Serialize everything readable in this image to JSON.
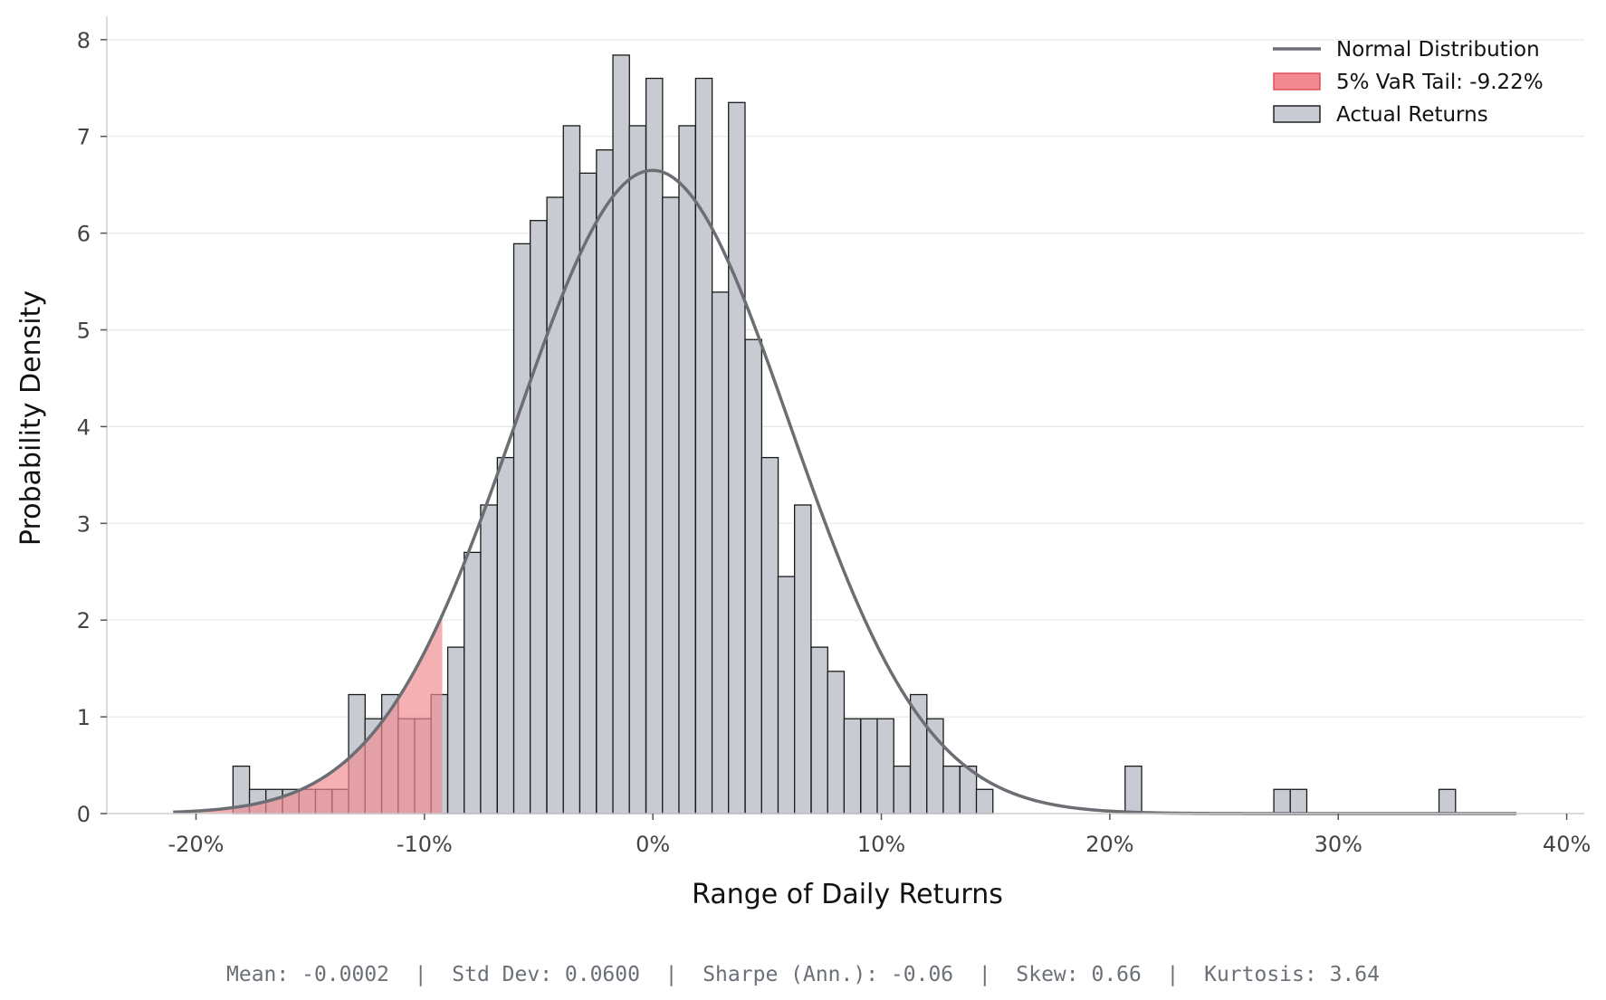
{
  "chart_data": {
    "type": "bar",
    "xlabel": "Range of Daily Returns",
    "ylabel": "Probability Density",
    "xlim": [
      -0.23,
      0.4
    ],
    "ylim": [
      0,
      8.25
    ],
    "x_ticks": [
      -0.2,
      -0.1,
      0.0,
      0.1,
      0.2,
      0.3,
      0.4
    ],
    "x_tick_labels": [
      "-20%",
      "-10%",
      "0%",
      "10%",
      "20%",
      "30%",
      "40%"
    ],
    "y_ticks": [
      0,
      1,
      2,
      3,
      4,
      5,
      6,
      7,
      8
    ],
    "y_tick_labels": [
      "0",
      "1",
      "2",
      "3",
      "4",
      "5",
      "6",
      "7",
      "8"
    ],
    "grid": "horizontal",
    "legend_position": "top-right",
    "legend": [
      {
        "label": "Normal Distribution",
        "kind": "line",
        "color": "#6b6e73"
      },
      {
        "label": "5% VaR Tail: -9.22%",
        "kind": "patch",
        "color": "#f08a90",
        "edge": "#e0505a"
      },
      {
        "label": "Actual Returns",
        "kind": "patch",
        "color": "#c8ccd2",
        "edge": "#222222"
      }
    ],
    "histogram": {
      "name": "Actual Returns",
      "bin_width": 0.00723,
      "bins_start": [
        -0.1838,
        -0.1766,
        -0.1694,
        -0.1621,
        -0.1549,
        -0.1477,
        -0.1404,
        -0.1332,
        -0.126,
        -0.1187,
        -0.1115,
        -0.1043,
        -0.0971,
        -0.0898,
        -0.0826,
        -0.0754,
        -0.0681,
        -0.0609,
        -0.0537,
        -0.0464,
        -0.0392,
        -0.032,
        -0.0247,
        -0.0175,
        -0.0103,
        -0.003,
        0.0042,
        0.0114,
        0.0187,
        0.0259,
        0.0331,
        0.0404,
        0.0476,
        0.0548,
        0.062,
        0.0693,
        0.0765,
        0.0837,
        0.091,
        0.0982,
        0.1054,
        0.1127,
        0.1199,
        0.1271,
        0.1344,
        0.1416,
        0.2067,
        0.2718,
        0.279,
        0.3441
      ],
      "values": [
        0.49,
        0.25,
        0.25,
        0.25,
        0.25,
        0.25,
        0.25,
        1.23,
        0.98,
        1.23,
        0.98,
        0.98,
        1.23,
        1.72,
        2.7,
        3.19,
        3.68,
        5.89,
        6.13,
        6.37,
        7.11,
        6.62,
        6.86,
        7.84,
        7.11,
        7.6,
        6.37,
        7.11,
        7.6,
        5.39,
        7.35,
        4.9,
        3.68,
        2.45,
        3.19,
        1.72,
        1.47,
        0.98,
        0.98,
        0.98,
        0.49,
        1.23,
        0.98,
        0.49,
        0.49,
        0.25,
        0.49,
        0.25,
        0.25,
        0.25
      ]
    },
    "normal_curve": {
      "name": "Normal Distribution",
      "mean": -0.0002,
      "std": 0.06,
      "x_range": [
        -0.21,
        0.378
      ]
    },
    "var_tail": {
      "name": "5% VaR Tail: -9.22%",
      "threshold": -0.0922,
      "color": "#f08a90"
    },
    "stats_text": "Mean: -0.0002  |  Std Dev: 0.0600  |  Sharpe (Ann.): -0.06  |  Skew: 0.66  |  Kurtosis: 3.64"
  }
}
